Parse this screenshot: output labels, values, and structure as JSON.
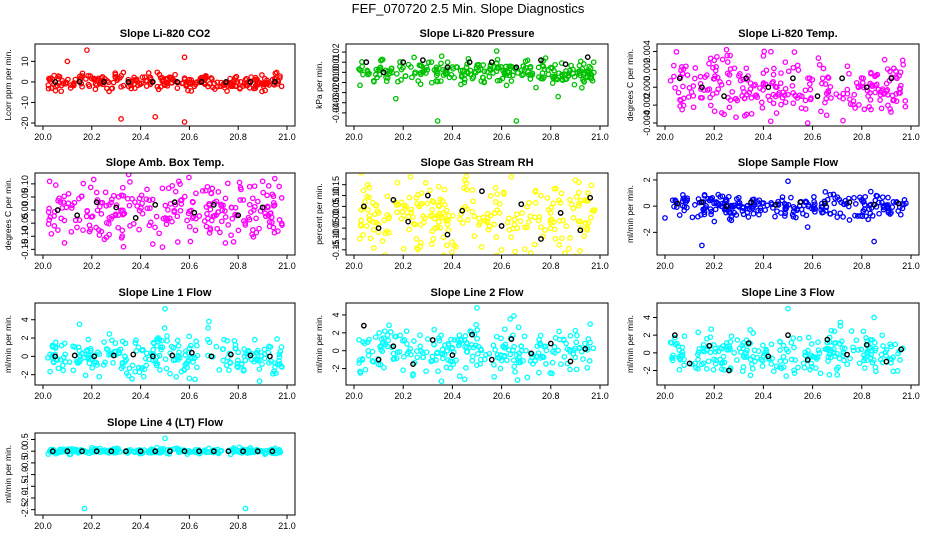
{
  "figure": {
    "title": "FEF_070720  2.5 Min. Slope Diagnostics"
  },
  "chart_data": [
    {
      "id": "p1",
      "type": "scatter",
      "title": "Slope Li-820 CO2",
      "ylabel": "Lcorr ppm per min.",
      "color": "#ff0000",
      "xlim": [
        20.0,
        21.0
      ],
      "ylim": [
        -20,
        17
      ],
      "yticks": [
        -20,
        -10,
        0,
        10
      ],
      "x_ticks": [
        "20.0",
        "20.2",
        "20.4",
        "20.6",
        "20.8",
        "21.0"
      ],
      "spread": 2.0,
      "hi_points": [
        [
          20.18,
          15.5
        ],
        [
          20.58,
          12
        ],
        [
          20.46,
          -17
        ],
        [
          20.32,
          -18
        ],
        [
          20.58,
          -19.5
        ],
        [
          20.1,
          10
        ]
      ],
      "black_points": [
        [
          20.05,
          0
        ],
        [
          20.15,
          0
        ],
        [
          20.25,
          0
        ],
        [
          20.35,
          0
        ],
        [
          20.45,
          0
        ],
        [
          20.55,
          0
        ],
        [
          20.65,
          0
        ],
        [
          20.75,
          0
        ],
        [
          20.85,
          0
        ],
        [
          20.95,
          0
        ]
      ]
    },
    {
      "id": "p2",
      "type": "scatter",
      "title": "Slope Li-820 Pressure",
      "ylabel": "kPa per min.",
      "color": "#00c000",
      "xlim": [
        20.0,
        21.0
      ],
      "ylim": [
        -0.05,
        0.025
      ],
      "yticks": [
        -0.04,
        -0.03,
        -0.02,
        -0.01,
        0.0,
        0.01,
        0.02
      ],
      "x_ticks": [
        "20.0",
        "20.2",
        "20.4",
        "20.6",
        "20.8",
        "21.0"
      ],
      "spread": 0.006,
      "hi_points": [
        [
          20.17,
          -0.026
        ],
        [
          20.34,
          -0.048
        ],
        [
          20.66,
          -0.048
        ],
        [
          20.83,
          -0.024
        ],
        [
          20.58,
          0.021
        ]
      ],
      "black_points": [
        [
          20.05,
          0.01
        ],
        [
          20.12,
          0.0
        ],
        [
          20.2,
          0.01
        ],
        [
          20.28,
          0.012
        ],
        [
          20.38,
          0.005
        ],
        [
          20.47,
          0.01
        ],
        [
          20.56,
          0.01
        ],
        [
          20.66,
          0.005
        ],
        [
          20.76,
          0.012
        ],
        [
          20.86,
          0.008
        ],
        [
          20.95,
          0.015
        ]
      ]
    },
    {
      "id": "p3",
      "type": "scatter",
      "title": "Slope Li-820 Temp.",
      "ylabel": "degrees C per min.",
      "color": "#ff00ff",
      "xlim": [
        20.0,
        21.0
      ],
      "ylim": [
        -0.004,
        0.0045
      ],
      "yticks": [
        -0.004,
        -0.002,
        0.0,
        0.002,
        0.004
      ],
      "x_ticks": [
        "20.0",
        "20.2",
        "20.4",
        "20.6",
        "20.8",
        "21.0"
      ],
      "spread": 0.0016,
      "hi_points": [
        [
          20.25,
          0.0042
        ],
        [
          20.43,
          -0.0038
        ],
        [
          20.58,
          -0.004
        ],
        [
          20.2,
          0.003
        ],
        [
          20.4,
          0.0035
        ]
      ],
      "black_points": [
        [
          20.06,
          0.001
        ],
        [
          20.15,
          0.0
        ],
        [
          20.24,
          -0.001
        ],
        [
          20.33,
          0.001
        ],
        [
          20.42,
          0.0
        ],
        [
          20.52,
          0.001
        ],
        [
          20.62,
          -0.001
        ],
        [
          20.72,
          0.001
        ],
        [
          20.82,
          0.0
        ],
        [
          20.92,
          0.001
        ]
      ]
    },
    {
      "id": "p4",
      "type": "scatter",
      "title": "Slope Amb. Box Temp.",
      "ylabel": "degrees C per min.",
      "color": "#ff00ff",
      "xlim": [
        20.0,
        21.0
      ],
      "ylim": [
        -0.16,
        0.13
      ],
      "yticks": [
        -0.15,
        -0.1,
        -0.05,
        0.0,
        0.05,
        0.1
      ],
      "x_ticks": [
        "20.0",
        "20.2",
        "20.4",
        "20.6",
        "20.8",
        "21.0"
      ],
      "spread": 0.06,
      "hi_points": [
        [
          20.45,
          -0.13
        ],
        [
          20.95,
          0.12
        ],
        [
          20.9,
          0.11
        ],
        [
          20.33,
          -0.14
        ]
      ],
      "black_points": [
        [
          20.06,
          0.0
        ],
        [
          20.14,
          -0.02
        ],
        [
          20.22,
          0.03
        ],
        [
          20.3,
          0.01
        ],
        [
          20.38,
          -0.03
        ],
        [
          20.46,
          0.02
        ],
        [
          20.54,
          0.03
        ],
        [
          20.62,
          -0.01
        ],
        [
          20.7,
          0.02
        ],
        [
          20.8,
          -0.02
        ],
        [
          20.9,
          0.01
        ]
      ]
    },
    {
      "id": "p5",
      "type": "scatter",
      "title": "Slope Gas Stream RH",
      "ylabel": "percent per min.",
      "color": "#ffff00",
      "xlim": [
        20.0,
        21.0
      ],
      "ylim": [
        -0.16,
        0.19
      ],
      "yticks": [
        -0.15,
        -0.1,
        -0.05,
        0.0,
        0.05,
        0.1,
        0.15
      ],
      "x_ticks": [
        "20.0",
        "20.2",
        "20.4",
        "20.6",
        "20.8",
        "21.0"
      ],
      "spread": 0.09,
      "hi_points": [
        [
          20.45,
          0.17
        ],
        [
          20.6,
          -0.15
        ],
        [
          20.9,
          0.17
        ]
      ],
      "black_points": [
        [
          20.04,
          0.05
        ],
        [
          20.1,
          -0.05
        ],
        [
          20.16,
          0.08
        ],
        [
          20.22,
          -0.02
        ],
        [
          20.3,
          0.1
        ],
        [
          20.38,
          -0.08
        ],
        [
          20.44,
          0.03
        ],
        [
          20.52,
          0.12
        ],
        [
          20.6,
          -0.04
        ],
        [
          20.68,
          0.06
        ],
        [
          20.76,
          -0.1
        ],
        [
          20.84,
          0.02
        ],
        [
          20.92,
          -0.06
        ],
        [
          20.96,
          0.09
        ]
      ]
    },
    {
      "id": "p6",
      "type": "scatter",
      "title": "Slope Sample Flow",
      "ylabel": "ml/min per min.",
      "color": "#0000ff",
      "xlim": [
        20.0,
        21.0
      ],
      "ylim": [
        -3.5,
        2.3
      ],
      "yticks": [
        -2,
        0,
        2
      ],
      "x_ticks": [
        "20.0",
        "20.2",
        "20.4",
        "20.6",
        "20.8",
        "21.0"
      ],
      "spread": 0.45,
      "hi_points": [
        [
          20.15,
          -3.0
        ],
        [
          20.5,
          1.9
        ],
        [
          20.85,
          -2.7
        ],
        [
          20.58,
          -1.6
        ],
        [
          20.0,
          -0.9
        ]
      ],
      "black_points": [
        [
          20.05,
          0.2
        ],
        [
          20.15,
          0.3
        ],
        [
          20.25,
          0.0
        ],
        [
          20.35,
          0.3
        ],
        [
          20.45,
          0.1
        ],
        [
          20.55,
          0.3
        ],
        [
          20.65,
          0.2
        ],
        [
          20.75,
          0.3
        ],
        [
          20.85,
          0.1
        ],
        [
          20.95,
          0.2
        ]
      ]
    },
    {
      "id": "p7",
      "type": "scatter",
      "title": "Slope Line 1 Flow",
      "ylabel": "ml/min per min.",
      "color": "#00ffff",
      "xlim": [
        20.0,
        21.0
      ],
      "ylim": [
        -2.8,
        5.5
      ],
      "yticks": [
        -2,
        0,
        2,
        4
      ],
      "x_ticks": [
        "20.0",
        "20.2",
        "20.4",
        "20.6",
        "20.8",
        "21.0"
      ],
      "spread": 1.1,
      "hi_points": [
        [
          20.5,
          5.2
        ],
        [
          20.68,
          3.8
        ],
        [
          20.6,
          -2.4
        ],
        [
          20.15,
          3.5
        ]
      ],
      "black_points": [
        [
          20.05,
          0.0
        ],
        [
          20.13,
          0.1
        ],
        [
          20.21,
          0.0
        ],
        [
          20.29,
          0.1
        ],
        [
          20.37,
          0.2
        ],
        [
          20.45,
          0.0
        ],
        [
          20.53,
          0.1
        ],
        [
          20.61,
          0.4
        ],
        [
          20.69,
          0.0
        ],
        [
          20.77,
          0.2
        ],
        [
          20.85,
          0.1
        ],
        [
          20.93,
          0.0
        ]
      ]
    },
    {
      "id": "p8",
      "type": "scatter",
      "title": "Slope Line 2 Flow",
      "ylabel": "ml/min per min.",
      "color": "#00ffff",
      "xlim": [
        20.0,
        21.0
      ],
      "ylim": [
        -3.5,
        5.0
      ],
      "yticks": [
        -2,
        0,
        2,
        4
      ],
      "x_ticks": [
        "20.0",
        "20.2",
        "20.4",
        "20.6",
        "20.8",
        "21.0"
      ],
      "spread": 1.3,
      "hi_points": [
        [
          20.5,
          4.8
        ],
        [
          20.45,
          -3.2
        ],
        [
          20.65,
          3.9
        ]
      ],
      "black_points": [
        [
          20.04,
          2.8
        ],
        [
          20.1,
          -1.0
        ],
        [
          20.16,
          0.5
        ],
        [
          20.24,
          -1.5
        ],
        [
          20.32,
          1.2
        ],
        [
          20.4,
          -0.5
        ],
        [
          20.48,
          1.8
        ],
        [
          20.56,
          -1.0
        ],
        [
          20.64,
          1.3
        ],
        [
          20.72,
          -0.3
        ],
        [
          20.8,
          0.8
        ],
        [
          20.88,
          -1.2
        ],
        [
          20.94,
          0.2
        ]
      ]
    },
    {
      "id": "p9",
      "type": "scatter",
      "title": "Slope Line 3 Flow",
      "ylabel": "ml/min per min.",
      "color": "#00ffff",
      "xlim": [
        20.0,
        21.0
      ],
      "ylim": [
        -3.3,
        5.3
      ],
      "yticks": [
        -2,
        0,
        2,
        4
      ],
      "x_ticks": [
        "20.0",
        "20.2",
        "20.4",
        "20.6",
        "20.8",
        "21.0"
      ],
      "spread": 1.2,
      "hi_points": [
        [
          20.5,
          5.0
        ],
        [
          20.7,
          -2.5
        ],
        [
          20.85,
          4.0
        ]
      ],
      "black_points": [
        [
          20.04,
          2.0
        ],
        [
          20.1,
          -1.2
        ],
        [
          20.18,
          0.8
        ],
        [
          20.26,
          -2.0
        ],
        [
          20.34,
          1.1
        ],
        [
          20.42,
          -0.4
        ],
        [
          20.5,
          2.0
        ],
        [
          20.58,
          -0.8
        ],
        [
          20.66,
          1.5
        ],
        [
          20.74,
          -0.2
        ],
        [
          20.82,
          0.9
        ],
        [
          20.9,
          -1.0
        ],
        [
          20.96,
          0.4
        ]
      ]
    },
    {
      "id": "p10",
      "type": "scatter",
      "title": "Slope Line 4 (LT) Flow",
      "ylabel": "ml/min per min.",
      "color": "#00ffff",
      "xlim": [
        20.0,
        21.0
      ],
      "ylim": [
        -2.6,
        0.65
      ],
      "yticks": [
        -2.5,
        -2.0,
        -1.5,
        -1.0,
        -0.5,
        0.0,
        0.5
      ],
      "x_ticks": [
        "20.0",
        "20.2",
        "20.4",
        "20.6",
        "20.8",
        "21.0"
      ],
      "spread": 0.06,
      "hi_points": [
        [
          20.5,
          0.55
        ],
        [
          20.17,
          -2.45
        ],
        [
          20.83,
          -2.45
        ]
      ],
      "black_points": [
        [
          20.04,
          0.0
        ],
        [
          20.1,
          0.0
        ],
        [
          20.16,
          0.0
        ],
        [
          20.22,
          0.0
        ],
        [
          20.28,
          0.0
        ],
        [
          20.34,
          0.0
        ],
        [
          20.4,
          0.0
        ],
        [
          20.46,
          0.0
        ],
        [
          20.52,
          0.0
        ],
        [
          20.58,
          0.0
        ],
        [
          20.64,
          0.0
        ],
        [
          20.7,
          0.0
        ],
        [
          20.76,
          0.0
        ],
        [
          20.82,
          0.0
        ],
        [
          20.88,
          0.0
        ],
        [
          20.94,
          0.0
        ]
      ]
    }
  ]
}
